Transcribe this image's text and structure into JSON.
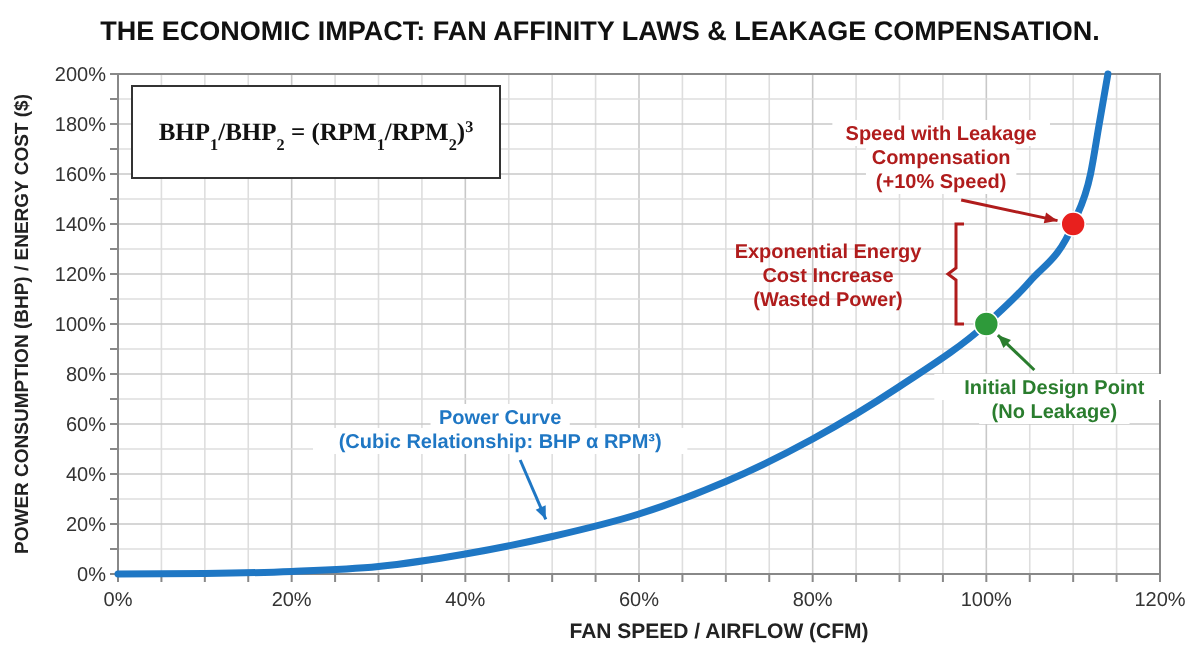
{
  "chart_data": {
    "type": "line",
    "title": "THE ECONOMIC IMPACT: FAN AFFINITY LAWS & LEAKAGE COMPENSATION.",
    "xlabel": "FAN SPEED / AIRFLOW (CFM)",
    "ylabel": "POWER CONSUMPTION (BHP) / ENERGY COST ($)",
    "series": [
      {
        "color": "#1f77c4",
        "x": [
          0,
          10,
          20,
          30,
          40,
          50,
          60,
          70,
          80,
          90,
          100,
          105,
          110,
          112,
          113,
          114
        ],
        "values": [
          0,
          0.2,
          1,
          3,
          8,
          15,
          24,
          37,
          54,
          75,
          100,
          117,
          140,
          160,
          180,
          200
        ]
      },
      {
        "type": "scatter",
        "x": [
          110,
          100
        ],
        "values": [
          140,
          100
        ],
        "colors": [
          "#e8201e",
          "#2e9a3a"
        ]
      }
    ],
    "xlim": [
      0,
      120
    ],
    "ylim": [
      0,
      200
    ],
    "xticks": [
      {
        "value": 0,
        "label": "0%"
      },
      {
        "value": 5,
        "label": null
      },
      {
        "value": 10,
        "label": null
      },
      {
        "value": 15,
        "label": null
      },
      {
        "value": 20,
        "label": "20%"
      },
      {
        "value": 25,
        "label": null
      },
      {
        "value": 30,
        "label": null
      },
      {
        "value": 35,
        "label": null
      },
      {
        "value": 40,
        "label": "40%"
      },
      {
        "value": 45,
        "label": null
      },
      {
        "value": 50,
        "label": null
      },
      {
        "value": 55,
        "label": null
      },
      {
        "value": 60,
        "label": "60%"
      },
      {
        "value": 65,
        "label": null
      },
      {
        "value": 70,
        "label": null
      },
      {
        "value": 75,
        "label": null
      },
      {
        "value": 80,
        "label": "80%"
      },
      {
        "value": 85,
        "label": null
      },
      {
        "value": 90,
        "label": null
      },
      {
        "value": 95,
        "label": null
      },
      {
        "value": 100,
        "label": "100%"
      },
      {
        "value": 105,
        "label": null
      },
      {
        "value": 110,
        "label": null
      },
      {
        "value": 115,
        "label": null
      },
      {
        "value": 120,
        "label": "120%"
      }
    ],
    "yticks": [
      {
        "value": 0,
        "label": "0%"
      },
      {
        "value": 10,
        "label": null
      },
      {
        "value": 20,
        "label": "20%"
      },
      {
        "value": 30,
        "label": null
      },
      {
        "value": 40,
        "label": "40%"
      },
      {
        "value": 50,
        "label": null
      },
      {
        "value": 60,
        "label": "60%"
      },
      {
        "value": 70,
        "label": null
      },
      {
        "value": 80,
        "label": "80%"
      },
      {
        "value": 90,
        "label": null
      },
      {
        "value": 100,
        "label": "100%"
      },
      {
        "value": 110,
        "label": null
      },
      {
        "value": 120,
        "label": "120%"
      },
      {
        "value": 130,
        "label": null
      },
      {
        "value": 140,
        "label": "140%"
      },
      {
        "value": 150,
        "label": null
      },
      {
        "value": 160,
        "label": "160%"
      },
      {
        "value": 170,
        "label": null
      },
      {
        "value": 180,
        "label": "180%"
      },
      {
        "value": 190,
        "label": null
      },
      {
        "value": 200,
        "label": "200%"
      }
    ],
    "grid": true,
    "line_style": "solid",
    "annotations": [
      "BHP$_{1}$/BHP$_{2}$ = (RPM$_{1}$/RPM$_{2}$)$^{3}$",
      {
        "text": "Speed with Leakage\nCompensation\n(+10% Speed)",
        "x": 110,
        "y": 140
      },
      "Exponential Energy\nCost Increase\n(Wasted Power)",
      {
        "text": "Initial Design Point\n(No Leakage)",
        "x": 100,
        "y": 100
      },
      {
        "text": "Power Curve\n(Cubic Relationship: BHP α RPM³)",
        "x": 50,
        "y": 16
      }
    ]
  }
}
